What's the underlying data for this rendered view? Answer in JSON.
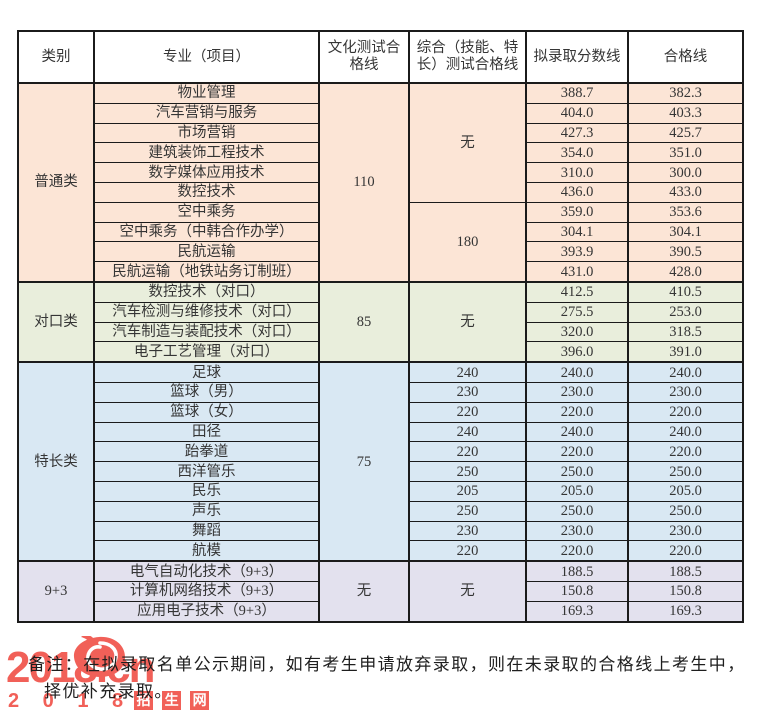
{
  "header": {
    "col_category": "类别",
    "col_major": "专业（项目）",
    "col_culture": "文化测试合格线",
    "col_comprehensive": "综合（技能、特长）测试合格线",
    "col_proposed": "拟录取分数线",
    "col_pass": "合格线"
  },
  "categories": [
    {
      "name": "普通类",
      "culture": "110",
      "color": "#fce5d6",
      "groups": [
        {
          "comprehensive": "无",
          "rows": [
            {
              "major": "物业管理",
              "proposed": "388.7",
              "pass": "382.3"
            },
            {
              "major": "汽车营销与服务",
              "proposed": "404.0",
              "pass": "403.3"
            },
            {
              "major": "市场营销",
              "proposed": "427.3",
              "pass": "425.7"
            },
            {
              "major": "建筑装饰工程技术",
              "proposed": "354.0",
              "pass": "351.0"
            },
            {
              "major": "数字媒体应用技术",
              "proposed": "310.0",
              "pass": "300.0"
            },
            {
              "major": "数控技术",
              "proposed": "436.0",
              "pass": "433.0"
            }
          ]
        },
        {
          "comprehensive": "180",
          "rows": [
            {
              "major": "空中乘务",
              "proposed": "359.0",
              "pass": "353.6"
            },
            {
              "major": "空中乘务（中韩合作办学）",
              "proposed": "304.1",
              "pass": "304.1"
            },
            {
              "major": "民航运输",
              "proposed": "393.9",
              "pass": "390.5"
            },
            {
              "major": "民航运输（地铁站务订制班）",
              "proposed": "431.0",
              "pass": "428.0"
            }
          ]
        }
      ]
    },
    {
      "name": "对口类",
      "culture": "85",
      "color": "#e9eedc",
      "groups": [
        {
          "comprehensive": "无",
          "rows": [
            {
              "major": "数控技术（对口）",
              "proposed": "412.5",
              "pass": "410.5"
            },
            {
              "major": "汽车检测与维修技术（对口）",
              "proposed": "275.5",
              "pass": "253.0"
            },
            {
              "major": "汽车制造与装配技术（对口）",
              "proposed": "320.0",
              "pass": "318.5"
            },
            {
              "major": "电子工艺管理（对口）",
              "proposed": "396.0",
              "pass": "391.0"
            }
          ]
        }
      ]
    },
    {
      "name": "特长类",
      "culture": "75",
      "color": "#d9e8f3",
      "groups": [
        {
          "comprehensive": null,
          "rows": [
            {
              "major": "足球",
              "comprehensive": "240",
              "proposed": "240.0",
              "pass": "240.0"
            },
            {
              "major": "篮球（男）",
              "comprehensive": "230",
              "proposed": "230.0",
              "pass": "230.0"
            },
            {
              "major": "篮球（女）",
              "comprehensive": "220",
              "proposed": "220.0",
              "pass": "220.0"
            },
            {
              "major": "田径",
              "comprehensive": "240",
              "proposed": "240.0",
              "pass": "240.0"
            },
            {
              "major": "跆拳道",
              "comprehensive": "220",
              "proposed": "220.0",
              "pass": "220.0"
            },
            {
              "major": "西洋管乐",
              "comprehensive": "250",
              "proposed": "250.0",
              "pass": "250.0"
            },
            {
              "major": "民乐",
              "comprehensive": "205",
              "proposed": "205.0",
              "pass": "205.0"
            },
            {
              "major": "声乐",
              "comprehensive": "250",
              "proposed": "250.0",
              "pass": "250.0"
            },
            {
              "major": "舞蹈",
              "comprehensive": "230",
              "proposed": "230.0",
              "pass": "230.0"
            },
            {
              "major": "航模",
              "comprehensive": "220",
              "proposed": "220.0",
              "pass": "220.0"
            }
          ]
        }
      ]
    },
    {
      "name": "9+3",
      "culture": "无",
      "color": "#e3e1ee",
      "groups": [
        {
          "comprehensive": "无",
          "rows": [
            {
              "major": "电气自动化技术（9+3）",
              "proposed": "188.5",
              "pass": "188.5"
            },
            {
              "major": "计算机网络技术（9+3）",
              "proposed": "150.8",
              "pass": "150.8"
            },
            {
              "major": "应用电子技术（9+3）",
              "proposed": "169.3",
              "pass": "169.3"
            }
          ]
        }
      ]
    }
  ],
  "note": {
    "line1": "备注：在拟录取名单公示期间，如有考生申请放弃录取，则在未录取的合格线上考生中，",
    "line2": "择优补充录取。"
  },
  "watermark": {
    "brand": "2018.cn",
    "year_digits": "2 0 1 8",
    "site_chars": [
      "招",
      "生",
      "网"
    ],
    "color": "#f0544c"
  }
}
